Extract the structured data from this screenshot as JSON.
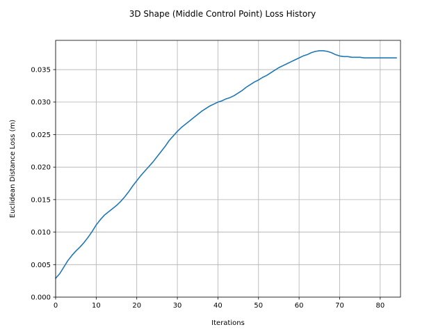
{
  "chart_data": {
    "type": "line",
    "title": "3D Shape (Middle Control Point) Loss History",
    "xlabel": "Iterations",
    "ylabel": "Euclidean Distance Loss (m)",
    "xlim": [
      0,
      85
    ],
    "ylim": [
      0.0,
      0.0395
    ],
    "xticks": [
      0,
      10,
      20,
      30,
      40,
      50,
      60,
      70,
      80
    ],
    "xtick_labels": [
      "0",
      "10",
      "20",
      "30",
      "40",
      "50",
      "60",
      "70",
      "80"
    ],
    "yticks": [
      0.0,
      0.005,
      0.01,
      0.015,
      0.02,
      0.025,
      0.03,
      0.035
    ],
    "ytick_labels": [
      "0.000",
      "0.005",
      "0.010",
      "0.015",
      "0.020",
      "0.025",
      "0.030",
      "0.035"
    ],
    "grid": true,
    "color": "#1f77b4",
    "x": [
      0,
      1,
      2,
      3,
      4,
      5,
      6,
      7,
      8,
      9,
      10,
      11,
      12,
      13,
      14,
      15,
      16,
      17,
      18,
      19,
      20,
      21,
      22,
      23,
      24,
      25,
      26,
      27,
      28,
      29,
      30,
      31,
      32,
      33,
      34,
      35,
      36,
      37,
      38,
      39,
      40,
      41,
      42,
      43,
      44,
      45,
      46,
      47,
      48,
      49,
      50,
      51,
      52,
      53,
      54,
      55,
      56,
      57,
      58,
      59,
      60,
      61,
      62,
      63,
      64,
      65,
      66,
      67,
      68,
      69,
      70,
      71,
      72,
      73,
      74,
      75,
      76,
      77,
      78,
      79,
      80,
      81,
      82,
      83,
      84
    ],
    "y": [
      0.0029,
      0.0036,
      0.0046,
      0.0056,
      0.0064,
      0.0071,
      0.0077,
      0.0084,
      0.0092,
      0.0101,
      0.0111,
      0.0119,
      0.0126,
      0.0131,
      0.0136,
      0.0141,
      0.0147,
      0.0154,
      0.0162,
      0.0171,
      0.0179,
      0.0187,
      0.0194,
      0.0201,
      0.0208,
      0.0216,
      0.0224,
      0.0232,
      0.0241,
      0.0248,
      0.0255,
      0.0261,
      0.0266,
      0.0271,
      0.0276,
      0.0281,
      0.0286,
      0.029,
      0.0294,
      0.0297,
      0.03,
      0.0302,
      0.0305,
      0.0307,
      0.031,
      0.0314,
      0.0318,
      0.0323,
      0.0327,
      0.0331,
      0.0334,
      0.0338,
      0.0341,
      0.0345,
      0.0349,
      0.0353,
      0.0356,
      0.0359,
      0.0362,
      0.0365,
      0.0368,
      0.0371,
      0.0373,
      0.0376,
      0.0378,
      0.0379,
      0.0379,
      0.0378,
      0.0376,
      0.0373,
      0.0371,
      0.037,
      0.037,
      0.0369,
      0.0369,
      0.0369,
      0.0368,
      0.0368,
      0.0368,
      0.0368,
      0.0368,
      0.0368,
      0.0368,
      0.0368,
      0.0368
    ]
  }
}
